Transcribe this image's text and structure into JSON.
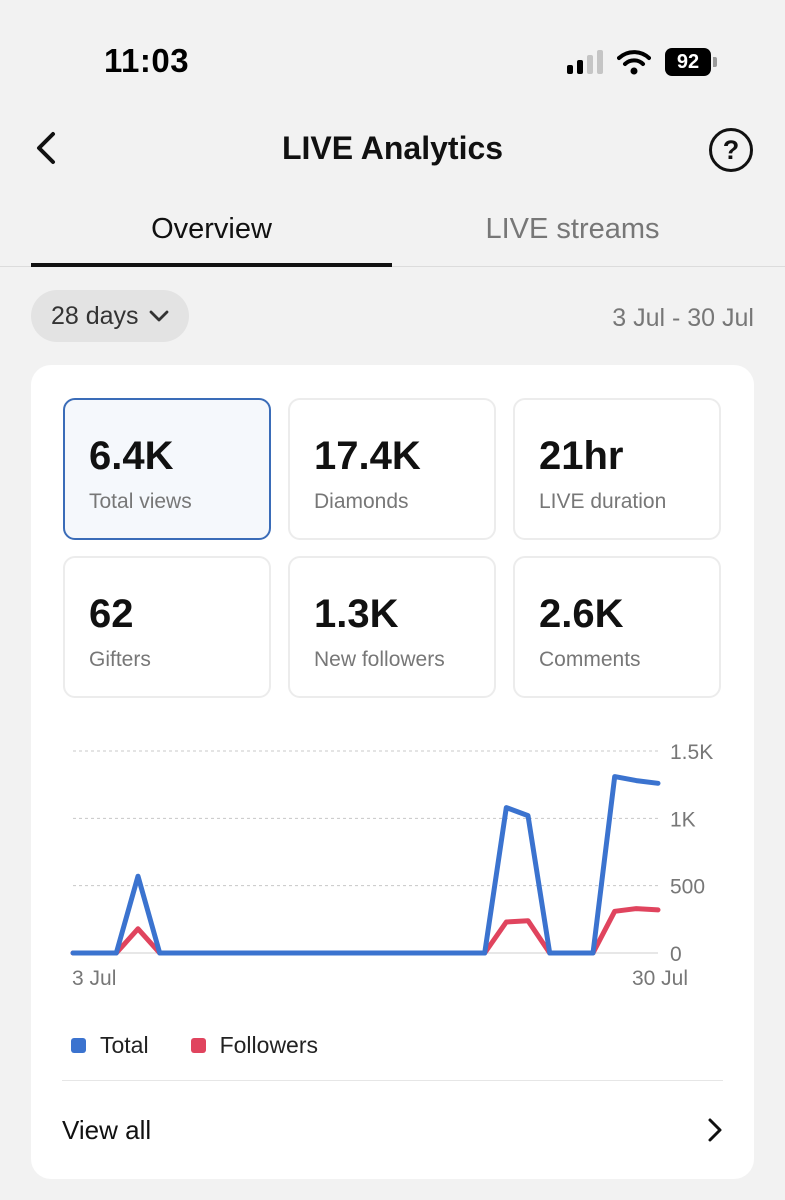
{
  "status_bar": {
    "time": "11:03",
    "battery": "92",
    "icons": [
      "signal-icon",
      "wifi-icon",
      "battery-icon"
    ]
  },
  "nav": {
    "title": "LIVE Analytics",
    "back_icon": "chevron-left-icon",
    "help_icon": "help-circle-icon",
    "help_glyph": "?"
  },
  "tabs": [
    {
      "label": "Overview",
      "active": true
    },
    {
      "label": "LIVE streams",
      "active": false
    }
  ],
  "filter": {
    "period": "28 days",
    "range": "3 Jul - 30 Jul"
  },
  "metrics": [
    {
      "value": "6.4K",
      "label": "Total views",
      "selected": true
    },
    {
      "value": "17.4K",
      "label": "Diamonds",
      "selected": false
    },
    {
      "value": "21hr",
      "label": "LIVE duration",
      "selected": false
    },
    {
      "value": "62",
      "label": "Gifters",
      "selected": false
    },
    {
      "value": "1.3K",
      "label": "New followers",
      "selected": false
    },
    {
      "value": "2.6K",
      "label": "Comments",
      "selected": false
    }
  ],
  "chart_data": {
    "type": "line",
    "x": [
      "3 Jul",
      "4 Jul",
      "5 Jul",
      "6 Jul",
      "7 Jul",
      "8 Jul",
      "9 Jul",
      "10 Jul",
      "11 Jul",
      "12 Jul",
      "13 Jul",
      "14 Jul",
      "15 Jul",
      "16 Jul",
      "17 Jul",
      "18 Jul",
      "19 Jul",
      "20 Jul",
      "21 Jul",
      "22 Jul",
      "23 Jul",
      "24 Jul",
      "25 Jul",
      "26 Jul",
      "27 Jul",
      "28 Jul",
      "29 Jul",
      "30 Jul"
    ],
    "x_tick_labels": [
      "3 Jul",
      "30 Jul"
    ],
    "series": [
      {
        "name": "Total",
        "color": "#3b73cf",
        "values": [
          0,
          0,
          0,
          570,
          0,
          0,
          0,
          0,
          0,
          0,
          0,
          0,
          0,
          0,
          0,
          0,
          0,
          0,
          0,
          0,
          1080,
          1020,
          0,
          0,
          0,
          1310,
          1280,
          1260
        ]
      },
      {
        "name": "Followers",
        "color": "#e0445e",
        "values": [
          0,
          0,
          0,
          180,
          0,
          0,
          0,
          0,
          0,
          0,
          0,
          0,
          0,
          0,
          0,
          0,
          0,
          0,
          0,
          0,
          230,
          240,
          0,
          0,
          0,
          310,
          330,
          320
        ]
      }
    ],
    "y_ticks": [
      "0",
      "500",
      "1K",
      "1.5K"
    ],
    "ylim": [
      0,
      1500
    ],
    "grid": true,
    "legend": "bottom-left"
  },
  "footer": {
    "view_all": "View all",
    "chevron_icon": "chevron-right-icon"
  }
}
